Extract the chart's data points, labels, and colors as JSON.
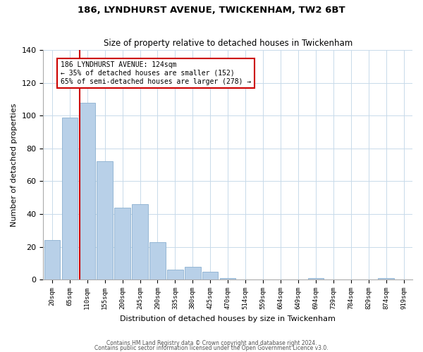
{
  "title": "186, LYNDHURST AVENUE, TWICKENHAM, TW2 6BT",
  "subtitle": "Size of property relative to detached houses in Twickenham",
  "xlabel": "Distribution of detached houses by size in Twickenham",
  "ylabel": "Number of detached properties",
  "bin_labels": [
    "20sqm",
    "65sqm",
    "110sqm",
    "155sqm",
    "200sqm",
    "245sqm",
    "290sqm",
    "335sqm",
    "380sqm",
    "425sqm",
    "470sqm",
    "514sqm",
    "559sqm",
    "604sqm",
    "649sqm",
    "694sqm",
    "739sqm",
    "784sqm",
    "829sqm",
    "874sqm",
    "919sqm"
  ],
  "bar_heights": [
    24,
    99,
    108,
    72,
    44,
    46,
    23,
    6,
    8,
    5,
    1,
    0,
    0,
    0,
    0,
    1,
    0,
    0,
    0,
    1,
    0
  ],
  "bar_color": "#b8d0e8",
  "bar_edge_color": "#8ab0d0",
  "annotation_line1": "186 LYNDHURST AVENUE: 124sqm",
  "annotation_line2": "← 35% of detached houses are smaller (152)",
  "annotation_line3": "65% of semi-detached houses are larger (278) →",
  "annotation_box_color": "#ffffff",
  "annotation_box_edgecolor": "#cc0000",
  "vline_color": "#cc0000",
  "ylim": [
    0,
    140
  ],
  "yticks": [
    0,
    20,
    40,
    60,
    80,
    100,
    120,
    140
  ],
  "footnote1": "Contains HM Land Registry data © Crown copyright and database right 2024.",
  "footnote2": "Contains public sector information licensed under the Open Government Licence v3.0."
}
